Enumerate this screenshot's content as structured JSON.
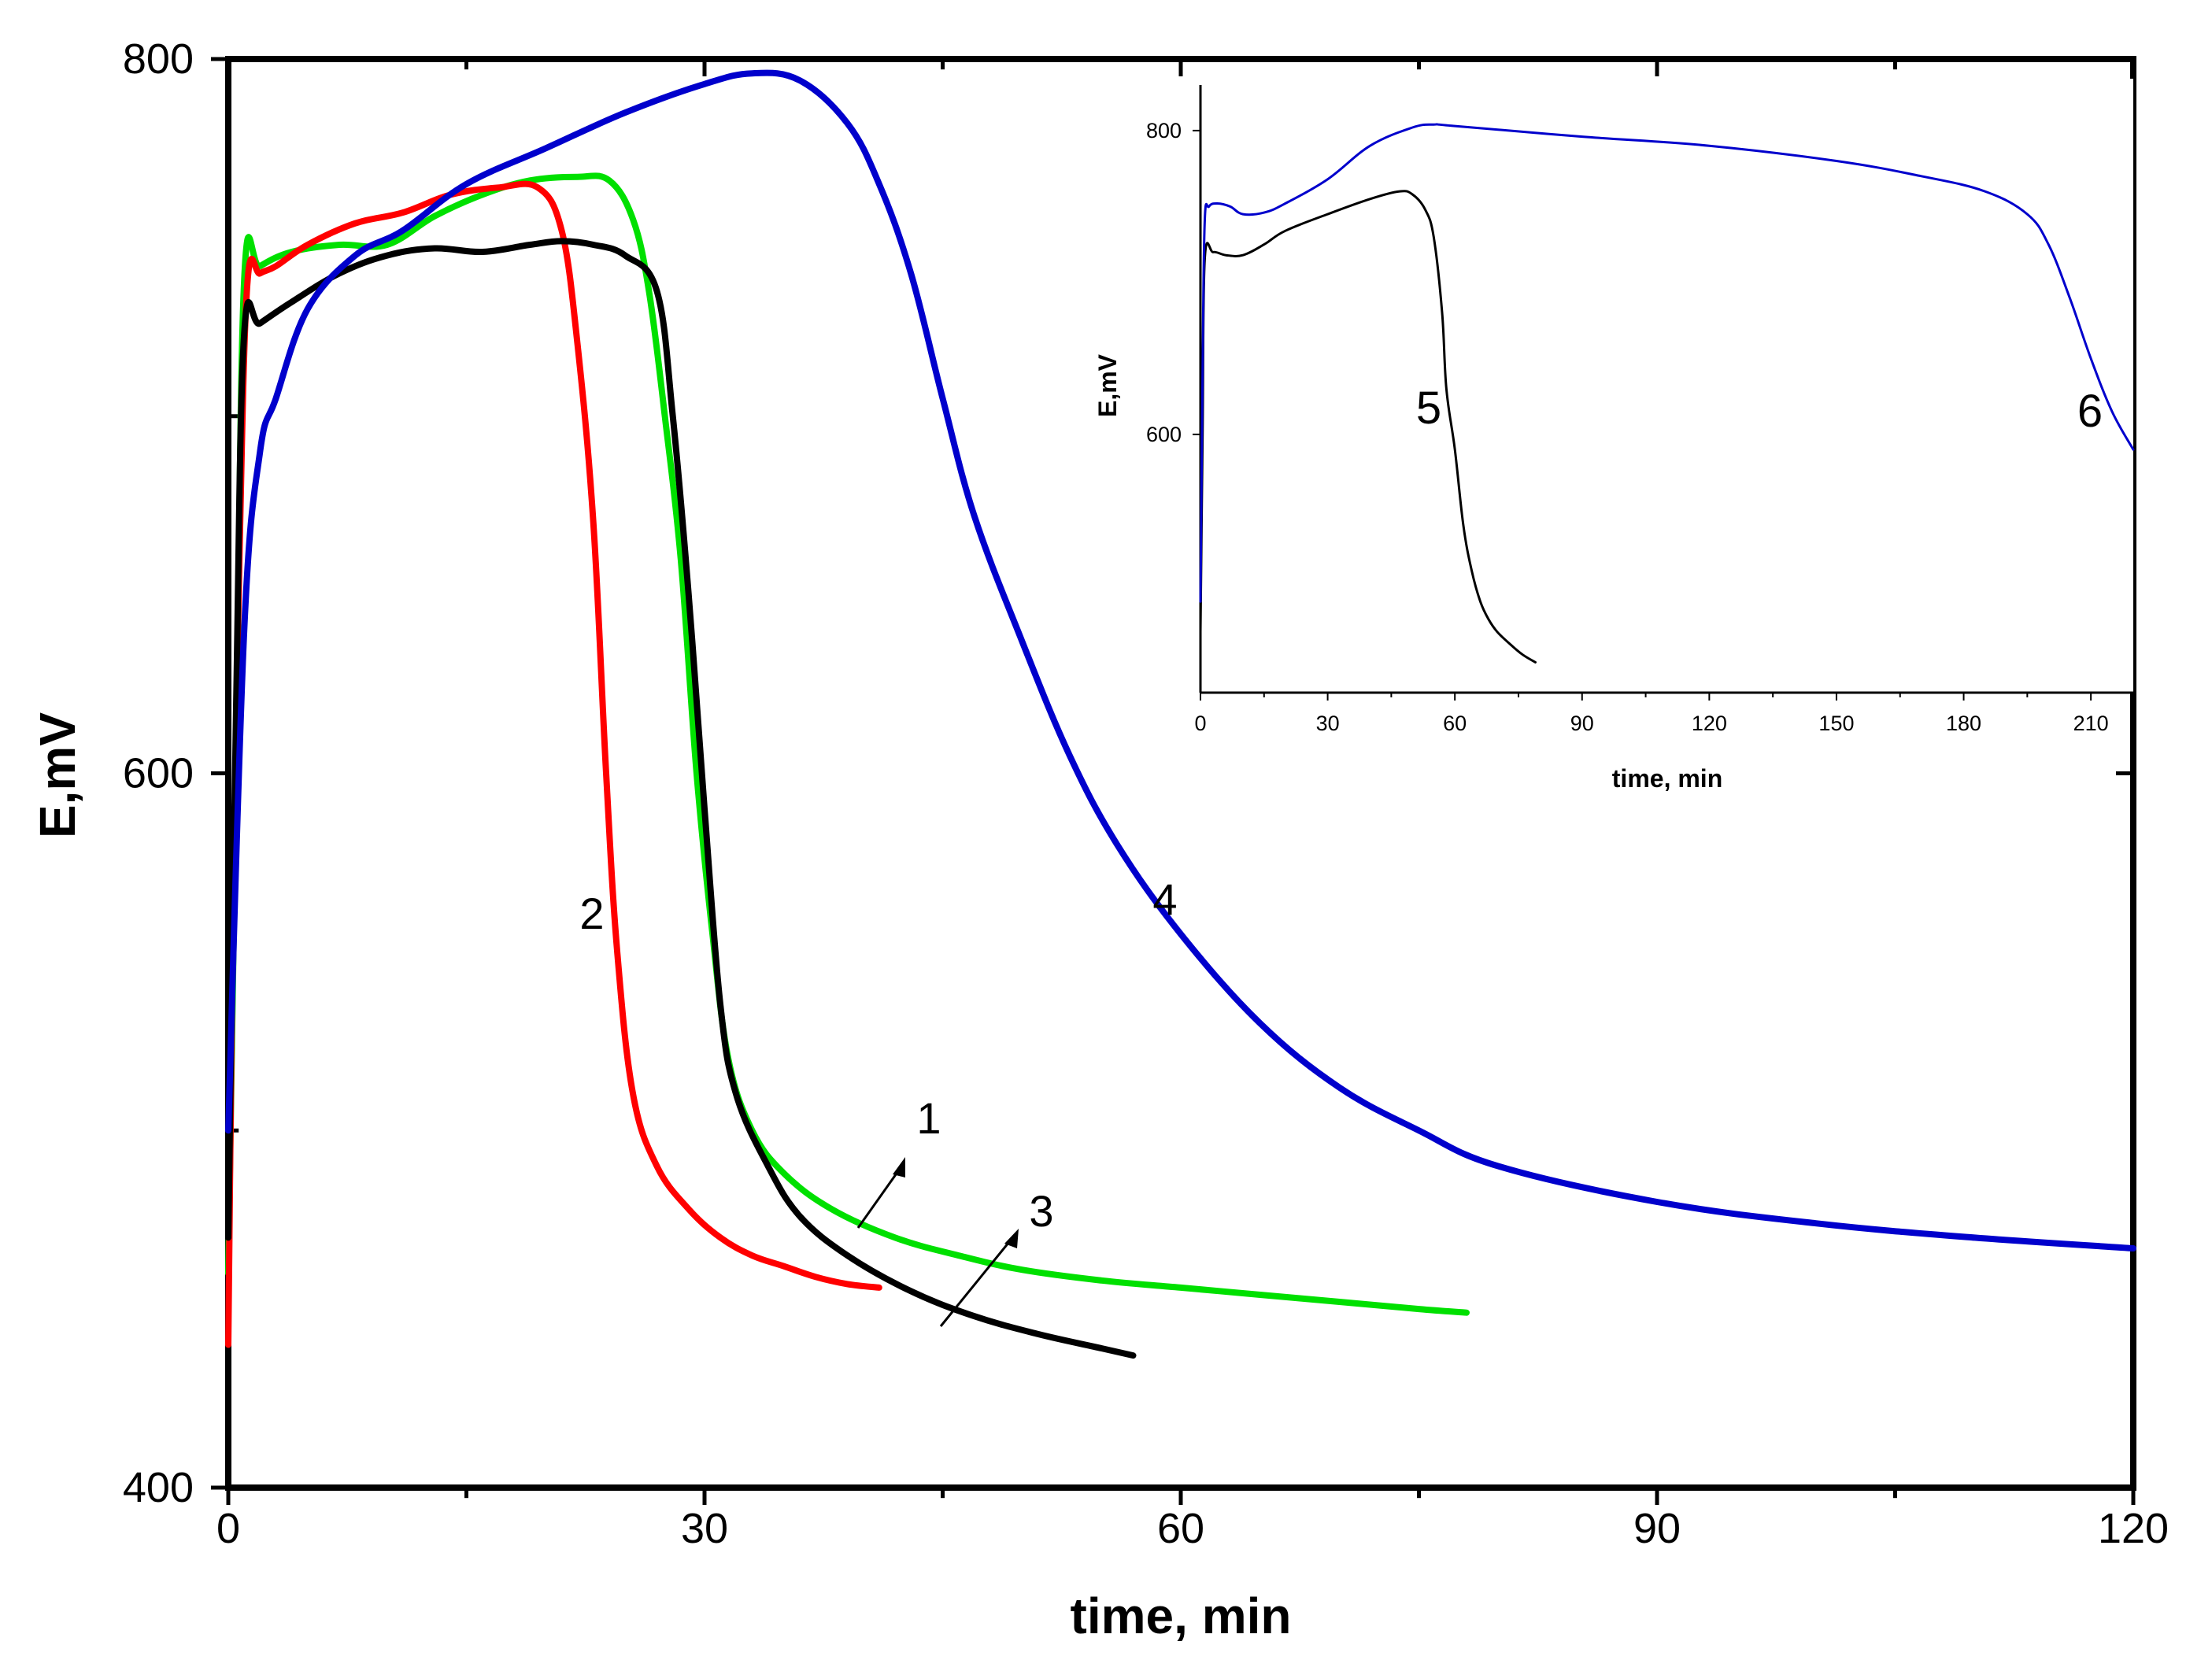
{
  "chart_data": [
    {
      "id": "main",
      "type": "line",
      "title": "",
      "xlabel": "time, min",
      "ylabel": "E,mV",
      "xlim": [
        0,
        120
      ],
      "ylim": [
        400,
        800
      ],
      "xticks": [
        0,
        30,
        60,
        90,
        120
      ],
      "xtick_labels": [
        "0",
        "30",
        "60",
        "90",
        "120"
      ],
      "yticks": [
        400,
        600,
        800
      ],
      "ytick_labels": [
        "400",
        "600",
        "800"
      ],
      "grid": false,
      "series": [
        {
          "name": "1",
          "color": "#00e000",
          "x": [
            0,
            0.5,
            1,
            2,
            4,
            7,
            10,
            13,
            16,
            19,
            22,
            24,
            25.5,
            26.5,
            27.5,
            28.5,
            29.5,
            30.5,
            31.5,
            33,
            35,
            38,
            42,
            46,
            50,
            55,
            60,
            65,
            70,
            75,
            78
          ],
          "y": [
            460,
            600,
            738,
            742,
            746,
            748,
            748,
            756,
            762,
            766,
            767,
            766,
            755,
            735,
            700,
            660,
            600,
            555,
            520,
            500,
            488,
            478,
            470,
            465,
            461,
            458,
            456,
            454,
            452,
            450,
            449
          ]
        },
        {
          "name": "2",
          "color": "#ff0000",
          "x": [
            0,
            0.3,
            0.7,
            1.2,
            2,
            3,
            5,
            8,
            11,
            14,
            17,
            19.5,
            21,
            22,
            23,
            23.8,
            24.5,
            25.5,
            27,
            29,
            31,
            33,
            35,
            37,
            39,
            41
          ],
          "y": [
            440,
            560,
            660,
            737,
            740,
            742,
            748,
            754,
            757,
            762,
            764,
            764,
            752,
            720,
            670,
            600,
            550,
            510,
            490,
            478,
            470,
            465,
            462,
            459,
            457,
            456
          ]
        },
        {
          "name": "3",
          "color": "#000000",
          "x": [
            0,
            0.5,
            1,
            2,
            4,
            7,
            10,
            13,
            16,
            19,
            21,
            23,
            25,
            27,
            28,
            29,
            30,
            31,
            32,
            34,
            36,
            39,
            43,
            47,
            51,
            55,
            57
          ],
          "y": [
            470,
            620,
            723,
            726,
            732,
            740,
            745,
            747,
            746,
            748,
            749,
            748,
            745,
            735,
            700,
            650,
            590,
            535,
            510,
            490,
            476,
            465,
            455,
            448,
            443,
            439,
            437
          ]
        },
        {
          "name": "4",
          "color": "#0000cc",
          "x": [
            0,
            1,
            2,
            3,
            5,
            8,
            11,
            15,
            20,
            25,
            30,
            33,
            36,
            39,
            41,
            43,
            45,
            47,
            50,
            53,
            56,
            60,
            65,
            70,
            75,
            80,
            90,
            100,
            110,
            120
          ],
          "y": [
            500,
            640,
            690,
            705,
            730,
            745,
            752,
            765,
            775,
            785,
            793,
            796,
            794,
            782,
            765,
            740,
            705,
            672,
            637,
            605,
            580,
            555,
            530,
            512,
            500,
            490,
            480,
            474,
            470,
            467
          ]
        }
      ],
      "annotations": [
        {
          "text": "1",
          "points_to_series": "1"
        },
        {
          "text": "2",
          "labels_series": "2"
        },
        {
          "text": "3",
          "points_to_series": "3"
        },
        {
          "text": "4",
          "labels_series": "4"
        }
      ]
    },
    {
      "id": "inset",
      "type": "line",
      "title": "",
      "xlabel": "time, min",
      "ylabel": "E,mV",
      "xlim": [
        0,
        220
      ],
      "ylim": [
        430,
        830
      ],
      "xticks": [
        0,
        30,
        60,
        90,
        120,
        150,
        180,
        210
      ],
      "xtick_labels": [
        "0",
        "30",
        "60",
        "90",
        "120",
        "150",
        "180",
        "210"
      ],
      "yticks": [
        600,
        800
      ],
      "ytick_labels": [
        "600",
        "800"
      ],
      "grid": false,
      "series": [
        {
          "name": "5",
          "color": "#000000",
          "x": [
            0,
            0.5,
            1,
            3,
            6,
            10,
            15,
            20,
            30,
            40,
            47,
            50,
            53,
            55,
            57,
            58,
            60,
            62,
            64,
            66,
            68,
            70,
            73,
            76,
            79
          ],
          "y": [
            470,
            600,
            715,
            720,
            718,
            718,
            725,
            734,
            745,
            755,
            760,
            758,
            748,
            730,
            680,
            630,
            590,
            540,
            510,
            490,
            478,
            470,
            462,
            455,
            450
          ]
        },
        {
          "name": "6",
          "color": "#0000cc",
          "x": [
            0,
            0.5,
            1,
            2,
            4,
            7,
            10,
            15,
            20,
            30,
            40,
            50,
            55,
            60,
            90,
            120,
            150,
            170,
            185,
            195,
            200,
            205,
            210,
            215,
            220
          ],
          "y": [
            490,
            640,
            740,
            750,
            752,
            750,
            745,
            746,
            752,
            768,
            790,
            802,
            804,
            803,
            796,
            790,
            780,
            770,
            760,
            745,
            725,
            690,
            650,
            615,
            590
          ]
        }
      ],
      "annotations": [
        {
          "text": "5",
          "labels_series": "5"
        },
        {
          "text": "6",
          "labels_series": "6"
        }
      ]
    }
  ]
}
